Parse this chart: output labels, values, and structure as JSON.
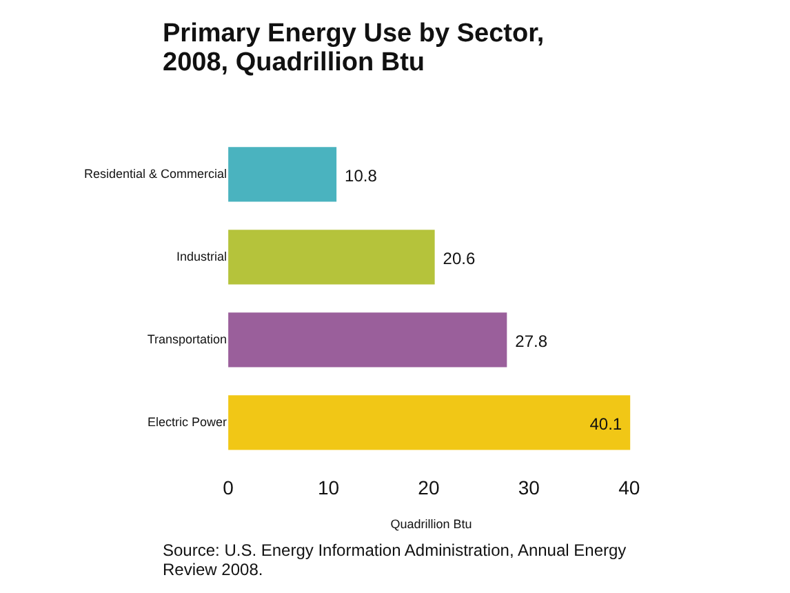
{
  "chart_data": {
    "type": "bar",
    "orientation": "horizontal",
    "title": "Primary Energy Use by Sector, 2008, Quadrillion Btu",
    "categories": [
      "Residential & Commercial",
      "Industrial",
      "Transportation",
      "Electric Power"
    ],
    "values": [
      10.8,
      20.6,
      27.8,
      40.1
    ],
    "colors": [
      "#4ab3bf",
      "#b5c33b",
      "#9a5f9b",
      "#f1c716"
    ],
    "xlabel": "Quadrillion Btu",
    "xlim": [
      0,
      40.5
    ],
    "xticks": [
      0,
      10,
      20,
      30,
      40
    ],
    "data_labels": true,
    "legend": false,
    "annotations": [
      "Source: U.S. Energy Information Administration, Annual Energy Review 2008."
    ]
  }
}
